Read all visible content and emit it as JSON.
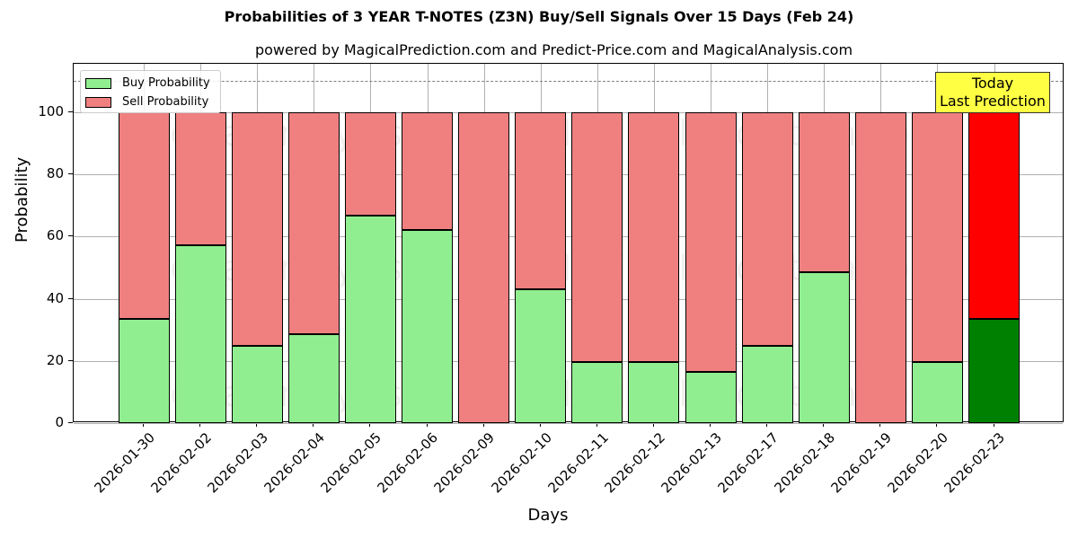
{
  "chart_data": {
    "type": "bar",
    "stacked": true,
    "title": "Probabilities of 3 YEAR T-NOTES (Z3N) Buy/Sell Signals Over 15 Days (Feb 24)",
    "subtitle": "powered by MagicalPrediction.com and Predict-Price.com and MagicalAnalysis.com",
    "xlabel": "Days",
    "ylabel": "Probability",
    "ylim": [
      0,
      115
    ],
    "yticks": [
      0,
      20,
      40,
      60,
      80,
      100
    ],
    "grid": true,
    "legend_position": "upper left",
    "reference_line": {
      "y": 110,
      "style": "dashed",
      "color": "#808080"
    },
    "categories": [
      "2026-01-30",
      "2026-02-02",
      "2026-02-03",
      "2026-02-04",
      "2026-02-05",
      "2026-02-06",
      "2026-02-09",
      "2026-02-10",
      "2026-02-11",
      "2026-02-12",
      "2026-02-13",
      "2026-02-17",
      "2026-02-18",
      "2026-02-19",
      "2026-02-20",
      "2026-02-23"
    ],
    "series": [
      {
        "name": "Buy Probability",
        "color": "#90ee90",
        "values": [
          33.5,
          57.2,
          24.9,
          28.6,
          66.8,
          62.1,
          0,
          43.1,
          19.7,
          19.7,
          16.5,
          24.9,
          48.6,
          0,
          19.7,
          33.5
        ]
      },
      {
        "name": "Sell Probability",
        "color": "#f08080",
        "values": [
          66.5,
          42.8,
          75.1,
          71.4,
          33.2,
          37.9,
          100,
          56.9,
          80.3,
          80.3,
          83.5,
          75.1,
          51.4,
          100,
          80.3,
          66.5
        ]
      }
    ],
    "highlight": {
      "index": 15,
      "buy_color": "#008000",
      "sell_color": "#ff0000"
    },
    "annotation": {
      "text_line1": "Today",
      "text_line2": "Last Prediction",
      "background": "#ffff44"
    },
    "watermarks": [
      "MagicalAnalysis.com",
      "MagicalPrediction.com"
    ]
  }
}
